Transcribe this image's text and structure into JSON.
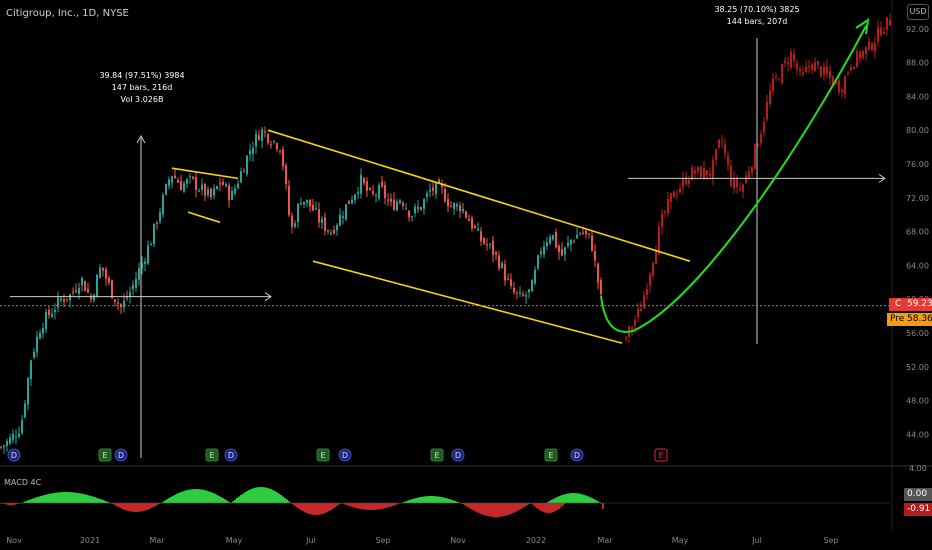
{
  "header": {
    "title": "Citigroup, Inc., 1D, NYSE",
    "currency": "USD"
  },
  "annotations": [
    {
      "id": "measure-1",
      "lines": [
        "39.84 (97.51%) 3984",
        "147 bars, 216d",
        "Vol 3.026B"
      ]
    },
    {
      "id": "measure-2",
      "lines": [
        "38.25 (70.10%) 3825",
        "144 bars, 207d"
      ]
    }
  ],
  "price_tags": {
    "close_label": "C",
    "close_value": "59.23",
    "pre_label": "Pre",
    "pre_value": "58.36"
  },
  "macd": {
    "label": "MACD 4C",
    "top_tick": "4.00",
    "value_zero": "0.00",
    "value_current": "-0.91"
  },
  "event_markers": [
    "D",
    "E",
    "D",
    "E",
    "D",
    "E",
    "D",
    "E",
    "D",
    "E",
    "D",
    "E"
  ],
  "colors": {
    "background": "#000000",
    "up": "#26a69a",
    "down": "#ef5350",
    "projected": "#b71c1c",
    "channel": "#f5d60a",
    "arrow": "#22dd22",
    "macd_up": "#2ecc40",
    "macd_down": "#c62828"
  },
  "chart_data": {
    "type": "candlestick",
    "title": "Citigroup, Inc., 1D, NYSE",
    "x_ticks": [
      "Nov",
      "2021",
      "Mar",
      "May",
      "Jul",
      "Sep",
      "Nov",
      "2022",
      "Mar",
      "May",
      "Jul",
      "Sep"
    ],
    "y_ticks": [
      44,
      48,
      52,
      56,
      60,
      64,
      68,
      72,
      76,
      80,
      84,
      88,
      92
    ],
    "ylim": [
      41,
      95
    ],
    "price_path_actual": [
      [
        0,
        42.5
      ],
      [
        10,
        43.5
      ],
      [
        20,
        45
      ],
      [
        30,
        53
      ],
      [
        40,
        57
      ],
      [
        50,
        58.5
      ],
      [
        60,
        60
      ],
      [
        70,
        60.5
      ],
      [
        80,
        62.5
      ],
      [
        90,
        60
      ],
      [
        100,
        64
      ],
      [
        110,
        61
      ],
      [
        120,
        59
      ],
      [
        130,
        61
      ],
      [
        140,
        64
      ],
      [
        150,
        67
      ],
      [
        160,
        71
      ],
      [
        170,
        75
      ],
      [
        180,
        73.5
      ],
      [
        190,
        74
      ],
      [
        200,
        73
      ],
      [
        210,
        72
      ],
      [
        220,
        74
      ],
      [
        230,
        72
      ],
      [
        240,
        75
      ],
      [
        250,
        78
      ],
      [
        260,
        80
      ],
      [
        270,
        79
      ],
      [
        280,
        78
      ],
      [
        290,
        68
      ],
      [
        300,
        72
      ],
      [
        310,
        71
      ],
      [
        320,
        69
      ],
      [
        330,
        68
      ],
      [
        340,
        70
      ],
      [
        350,
        72
      ],
      [
        360,
        74
      ],
      [
        370,
        72
      ],
      [
        380,
        73
      ],
      [
        390,
        71
      ],
      [
        400,
        72
      ],
      [
        410,
        70
      ],
      [
        420,
        71
      ],
      [
        430,
        73
      ],
      [
        440,
        73
      ],
      [
        450,
        71
      ],
      [
        460,
        71
      ],
      [
        470,
        69
      ],
      [
        480,
        67
      ],
      [
        490,
        66
      ],
      [
        500,
        64
      ],
      [
        510,
        61
      ],
      [
        520,
        60
      ],
      [
        530,
        61
      ],
      [
        540,
        66
      ],
      [
        550,
        68
      ],
      [
        560,
        65
      ],
      [
        570,
        67
      ],
      [
        580,
        68
      ],
      [
        590,
        67
      ],
      [
        600,
        60
      ]
    ],
    "price_path_projected": [
      [
        625,
        55.5
      ],
      [
        640,
        59
      ],
      [
        650,
        64
      ],
      [
        660,
        69
      ],
      [
        670,
        72
      ],
      [
        690,
        75
      ],
      [
        710,
        75
      ],
      [
        720,
        79
      ],
      [
        730,
        74
      ],
      [
        740,
        73
      ],
      [
        750,
        76
      ],
      [
        760,
        80
      ],
      [
        770,
        85
      ],
      [
        780,
        87
      ],
      [
        790,
        89
      ],
      [
        800,
        86
      ],
      [
        810,
        88
      ],
      [
        820,
        87
      ],
      [
        830,
        86
      ],
      [
        840,
        85
      ],
      [
        850,
        88
      ],
      [
        860,
        89
      ],
      [
        870,
        90
      ],
      [
        880,
        92
      ],
      [
        890,
        93
      ]
    ],
    "channel_upper": [
      [
        268,
        80
      ],
      [
        690,
        64.5
      ]
    ],
    "channel_lower": [
      [
        313,
        64.5
      ],
      [
        622,
        54.8
      ]
    ],
    "flag_upper": [
      [
        172,
        75.5
      ],
      [
        238,
        74.3
      ]
    ],
    "flag_lower": [
      [
        188,
        70.3
      ],
      [
        220,
        69.1
      ]
    ],
    "level_left": 60.3,
    "level_right": 74.3,
    "current_price": 59.23,
    "pre_price": 58.36
  }
}
